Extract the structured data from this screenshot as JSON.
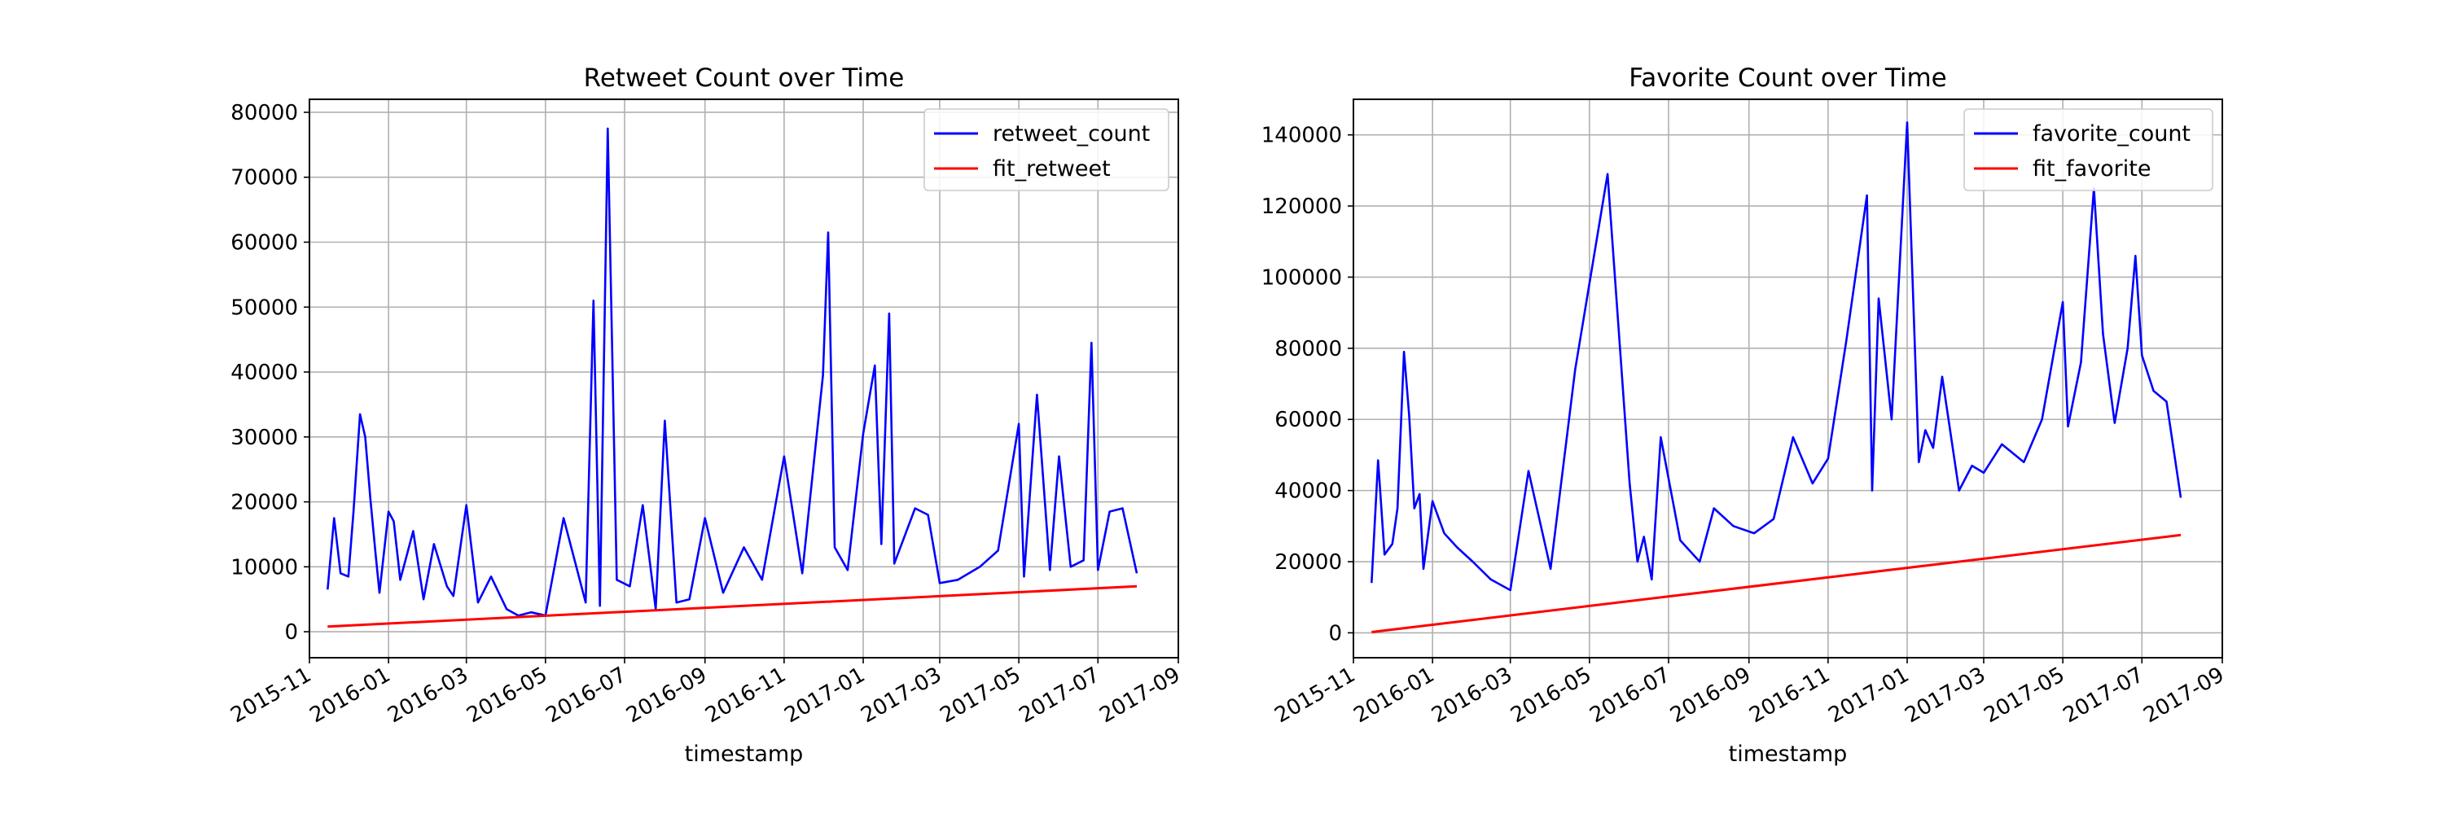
{
  "chart_data": [
    {
      "type": "line",
      "title": "Retweet Count over Time",
      "xlabel": "timestamp",
      "ylabel": "",
      "x_range": [
        "2015-11-01",
        "2017-09-01"
      ],
      "ylim": [
        -4000,
        82000
      ],
      "grid": true,
      "legend_position": "top-right",
      "x_ticks": [
        "2015-11",
        "2016-01",
        "2016-03",
        "2016-05",
        "2016-07",
        "2016-09",
        "2016-11",
        "2017-01",
        "2017-03",
        "2017-05",
        "2017-07",
        "2017-09"
      ],
      "y_ticks": [
        0,
        10000,
        20000,
        30000,
        40000,
        50000,
        60000,
        70000,
        80000
      ],
      "colors": {
        "series": "#0000ff",
        "fit": "#ff0000"
      },
      "series": [
        {
          "name": "retweet_count",
          "color": "#0000ff",
          "x": [
            "2015-11-15",
            "2015-11-20",
            "2015-11-25",
            "2015-12-01",
            "2015-12-05",
            "2015-12-10",
            "2015-12-14",
            "2015-12-18",
            "2015-12-22",
            "2015-12-25",
            "2016-01-01",
            "2016-01-05",
            "2016-01-10",
            "2016-01-20",
            "2016-01-28",
            "2016-02-05",
            "2016-02-15",
            "2016-02-20",
            "2016-03-01",
            "2016-03-10",
            "2016-03-20",
            "2016-04-01",
            "2016-04-10",
            "2016-04-20",
            "2016-05-01",
            "2016-05-15",
            "2016-06-01",
            "2016-06-07",
            "2016-06-12",
            "2016-06-18",
            "2016-06-25",
            "2016-07-05",
            "2016-07-15",
            "2016-07-25",
            "2016-08-01",
            "2016-08-10",
            "2016-08-20",
            "2016-09-01",
            "2016-09-15",
            "2016-10-01",
            "2016-10-15",
            "2016-11-01",
            "2016-11-15",
            "2016-12-01",
            "2016-12-05",
            "2016-12-10",
            "2016-12-20",
            "2017-01-01",
            "2017-01-10",
            "2017-01-15",
            "2017-01-21",
            "2017-01-25",
            "2017-02-10",
            "2017-02-20",
            "2017-03-01",
            "2017-03-15",
            "2017-04-01",
            "2017-04-15",
            "2017-05-01",
            "2017-05-05",
            "2017-05-15",
            "2017-05-25",
            "2017-06-01",
            "2017-06-10",
            "2017-06-20",
            "2017-06-26",
            "2017-07-01",
            "2017-07-10",
            "2017-07-20",
            "2017-07-31"
          ],
          "values": [
            6500,
            17500,
            9000,
            8500,
            18500,
            33500,
            30000,
            20500,
            12000,
            6000,
            18500,
            17000,
            8000,
            15500,
            5000,
            13500,
            7000,
            5500,
            19500,
            4500,
            8500,
            3500,
            2500,
            3000,
            2500,
            17500,
            4500,
            51000,
            4000,
            77500,
            8000,
            7000,
            19500,
            3500,
            32500,
            4500,
            5000,
            17500,
            6000,
            13000,
            8000,
            27000,
            9000,
            39500,
            61500,
            13000,
            9500,
            30500,
            41000,
            13500,
            49000,
            10500,
            19000,
            18000,
            7500,
            8000,
            10000,
            12500,
            32000,
            8500,
            36500,
            9500,
            27000,
            10000,
            11000,
            44500,
            9500,
            18500,
            19000,
            9000
          ]
        },
        {
          "name": "fit_retweet",
          "color": "#ff0000",
          "x": [
            "2015-11-15",
            "2017-07-31"
          ],
          "values": [
            800,
            7000
          ]
        }
      ]
    },
    {
      "type": "line",
      "title": "Favorite Count over Time",
      "xlabel": "timestamp",
      "ylabel": "",
      "x_range": [
        "2015-11-01",
        "2017-09-01"
      ],
      "ylim": [
        -7000,
        150000
      ],
      "grid": true,
      "legend_position": "top-right",
      "x_ticks": [
        "2015-11",
        "2016-01",
        "2016-03",
        "2016-05",
        "2016-07",
        "2016-09",
        "2016-11",
        "2017-01",
        "2017-03",
        "2017-05",
        "2017-07",
        "2017-09"
      ],
      "y_ticks": [
        0,
        20000,
        40000,
        60000,
        80000,
        100000,
        120000,
        140000
      ],
      "colors": {
        "series": "#0000ff",
        "fit": "#ff0000"
      },
      "series": [
        {
          "name": "favorite_count",
          "color": "#0000ff",
          "x": [
            "2015-11-15",
            "2015-11-20",
            "2015-11-25",
            "2015-12-01",
            "2015-12-05",
            "2015-12-10",
            "2015-12-14",
            "2015-12-18",
            "2015-12-22",
            "2015-12-25",
            "2016-01-01",
            "2016-01-10",
            "2016-01-20",
            "2016-02-01",
            "2016-02-15",
            "2016-03-01",
            "2016-03-15",
            "2016-04-01",
            "2016-04-20",
            "2016-05-15",
            "2016-06-01",
            "2016-06-07",
            "2016-06-12",
            "2016-06-18",
            "2016-06-25",
            "2016-07-10",
            "2016-07-25",
            "2016-08-05",
            "2016-08-20",
            "2016-09-05",
            "2016-09-20",
            "2016-10-05",
            "2016-10-20",
            "2016-11-01",
            "2016-11-15",
            "2016-12-01",
            "2016-12-05",
            "2016-12-10",
            "2016-12-20",
            "2017-01-01",
            "2017-01-10",
            "2017-01-15",
            "2017-01-21",
            "2017-01-28",
            "2017-02-10",
            "2017-02-20",
            "2017-03-01",
            "2017-03-15",
            "2017-04-01",
            "2017-04-15",
            "2017-05-01",
            "2017-05-05",
            "2017-05-15",
            "2017-05-25",
            "2017-06-01",
            "2017-06-10",
            "2017-06-20",
            "2017-06-26",
            "2017-07-01",
            "2017-07-10",
            "2017-07-20",
            "2017-07-31"
          ],
          "values": [
            14000,
            48500,
            22000,
            25000,
            35000,
            79000,
            61000,
            35000,
            39000,
            18000,
            37000,
            28000,
            24000,
            20000,
            15000,
            12000,
            45500,
            18000,
            74000,
            129000,
            42000,
            20000,
            27000,
            15000,
            55000,
            26000,
            20000,
            35000,
            30000,
            28000,
            32000,
            55000,
            42000,
            49000,
            82000,
            123000,
            40000,
            94000,
            60000,
            143500,
            48000,
            57000,
            52000,
            72000,
            40000,
            47000,
            45000,
            53000,
            48000,
            60000,
            93000,
            58000,
            76000,
            125000,
            84000,
            59000,
            80000,
            106000,
            78000,
            68000,
            65000,
            38000
          ]
        },
        {
          "name": "fit_favorite",
          "color": "#ff0000",
          "x": [
            "2015-11-15",
            "2017-07-31"
          ],
          "values": [
            200,
            27500
          ]
        }
      ]
    }
  ]
}
